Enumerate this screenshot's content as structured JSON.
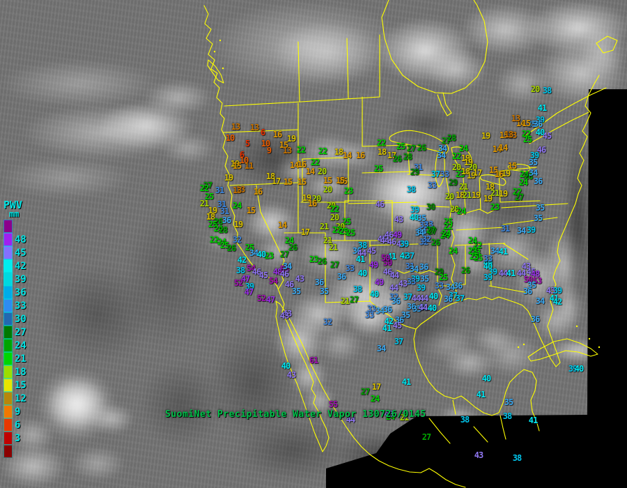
{
  "caption": {
    "text": "SuomiNet Precipitable Water Vapor 130726/0145",
    "color": "#00C24A"
  },
  "map": {
    "border_color": "#FFFF00",
    "background": "#747474",
    "scan_edge_color": "#000000"
  },
  "legend": {
    "title": "PWV",
    "unit": "mm",
    "text_color": "#00E2E2",
    "blocks": [
      {
        "color": "#8B008B",
        "label": ""
      },
      {
        "color": "#A020F0",
        "label": "48"
      },
      {
        "color": "#8470FF",
        "label": "45"
      },
      {
        "color": "#00EEEE",
        "label": "42"
      },
      {
        "color": "#00D8E0",
        "label": "39"
      },
      {
        "color": "#00ACE8",
        "label": "36"
      },
      {
        "color": "#2E8CF0",
        "label": "33"
      },
      {
        "color": "#2268B0",
        "label": "30"
      },
      {
        "color": "#007800",
        "label": "27"
      },
      {
        "color": "#00A400",
        "label": "24"
      },
      {
        "color": "#00D400",
        "label": "21"
      },
      {
        "color": "#9CDC00",
        "label": "18"
      },
      {
        "color": "#E8E400",
        "label": "15"
      },
      {
        "color": "#B8860B",
        "label": "12"
      },
      {
        "color": "#F07800",
        "label": "9"
      },
      {
        "color": "#E83800",
        "label": "6"
      },
      {
        "color": "#C00000",
        "label": "3"
      },
      {
        "color": "#8B0000",
        "label": ""
      }
    ]
  },
  "scale_colors": [
    [
      50,
      "#A010B0"
    ],
    [
      47,
      "#9B30E8"
    ],
    [
      43,
      "#8F76F0"
    ],
    [
      40,
      "#00E6F2"
    ],
    [
      37,
      "#00C6EC"
    ],
    [
      34,
      "#3BA8F0"
    ],
    [
      31,
      "#3E86DC"
    ],
    [
      29,
      "#008800"
    ],
    [
      26,
      "#00A400"
    ],
    [
      22,
      "#00D400"
    ],
    [
      20,
      "#A8D400"
    ],
    [
      17,
      "#D8C000"
    ],
    [
      14,
      "#E09800"
    ],
    [
      11,
      "#C87400"
    ],
    [
      8,
      "#E85C00"
    ],
    [
      5,
      "#E83000"
    ],
    [
      0,
      "#D01010"
    ]
  ],
  "stations": [
    [
      13,
      338,
      182
    ],
    [
      13,
      365,
      183
    ],
    [
      6,
      377,
      190
    ],
    [
      16,
      398,
      193
    ],
    [
      10,
      330,
      198
    ],
    [
      5,
      355,
      206
    ],
    [
      10,
      381,
      206
    ],
    [
      9,
      386,
      216
    ],
    [
      19,
      418,
      199
    ],
    [
      15,
      407,
      208
    ],
    [
      13,
      412,
      216
    ],
    [
      6,
      347,
      222
    ],
    [
      10,
      350,
      230
    ],
    [
      19,
      337,
      235
    ],
    [
      15,
      340,
      238
    ],
    [
      11,
      357,
      238
    ],
    [
      22,
      432,
      215
    ],
    [
      22,
      463,
      217
    ],
    [
      18,
      486,
      218
    ],
    [
      14,
      498,
      223
    ],
    [
      16,
      517,
      223
    ],
    [
      14,
      422,
      237
    ],
    [
      16,
      433,
      236
    ],
    [
      22,
      452,
      233
    ],
    [
      14,
      445,
      246
    ],
    [
      20,
      462,
      246
    ],
    [
      18,
      388,
      253
    ],
    [
      17,
      396,
      260
    ],
    [
      15,
      413,
      261
    ],
    [
      15,
      433,
      261
    ],
    [
      15,
      492,
      260
    ],
    [
      19,
      328,
      255
    ],
    [
      13,
      345,
      272
    ],
    [
      16,
      370,
      275
    ],
    [
      20,
      470,
      272
    ],
    [
      23,
      500,
      274
    ],
    [
      19,
      440,
      284
    ],
    [
      20,
      454,
      285
    ],
    [
      16,
      448,
      292
    ],
    [
      27,
      298,
      266
    ],
    [
      22,
      293,
      270
    ],
    [
      31,
      315,
      273
    ],
    [
      13,
      340,
      273
    ],
    [
      25,
      300,
      282
    ],
    [
      21,
      293,
      292
    ],
    [
      31,
      318,
      293
    ],
    [
      24,
      340,
      295
    ],
    [
      19,
      305,
      302
    ],
    [
      15,
      360,
      302
    ],
    [
      31,
      322,
      303
    ],
    [
      18,
      302,
      311
    ],
    [
      26,
      313,
      318
    ],
    [
      36,
      325,
      316
    ],
    [
      25,
      305,
      322
    ],
    [
      19,
      342,
      322
    ],
    [
      24,
      313,
      328
    ],
    [
      28,
      320,
      330
    ],
    [
      15,
      470,
      259
    ],
    [
      15,
      488,
      259
    ],
    [
      20,
      475,
      295
    ],
    [
      22,
      480,
      300
    ],
    [
      20,
      480,
      312
    ],
    [
      25,
      497,
      318
    ],
    [
      21,
      465,
      325
    ],
    [
      14,
      405,
      323
    ],
    [
      17,
      438,
      333
    ],
    [
      24,
      415,
      345
    ],
    [
      26,
      420,
      355
    ],
    [
      23,
      386,
      367
    ],
    [
      32,
      340,
      344
    ],
    [
      22,
      307,
      344
    ],
    [
      24,
      318,
      347
    ],
    [
      25,
      322,
      352
    ],
    [
      26,
      332,
      356
    ],
    [
      25,
      358,
      355
    ],
    [
      34,
      364,
      363
    ],
    [
      40,
      375,
      365
    ],
    [
      42,
      347,
      373
    ],
    [
      38,
      345,
      388
    ],
    [
      54,
      360,
      385
    ],
    [
      46,
      368,
      390
    ],
    [
      45,
      378,
      395
    ],
    [
      48,
      398,
      390
    ],
    [
      53,
      408,
      386
    ],
    [
      47,
      352,
      400
    ],
    [
      52,
      342,
      406
    ],
    [
      39,
      358,
      411
    ],
    [
      47,
      357,
      419
    ],
    [
      54,
      392,
      403
    ],
    [
      52,
      375,
      428
    ],
    [
      47,
      388,
      430
    ],
    [
      43,
      412,
      450
    ],
    [
      27,
      408,
      365
    ],
    [
      34,
      412,
      382
    ],
    [
      46,
      408,
      393
    ],
    [
      43,
      430,
      400
    ],
    [
      46,
      415,
      408
    ],
    [
      35,
      425,
      418
    ],
    [
      32,
      470,
      462
    ],
    [
      20,
      488,
      325
    ],
    [
      22,
      483,
      330
    ],
    [
      25,
      493,
      332
    ],
    [
      25,
      503,
      334
    ],
    [
      21,
      470,
      345
    ],
    [
      21,
      478,
      355
    ],
    [
      23,
      450,
      372
    ],
    [
      26,
      462,
      375
    ],
    [
      27,
      480,
      380
    ],
    [
      36,
      458,
      405
    ],
    [
      35,
      465,
      418
    ],
    [
      33,
      502,
      385
    ],
    [
      40,
      520,
      392
    ],
    [
      36,
      490,
      397
    ],
    [
      38,
      520,
      352
    ],
    [
      36,
      512,
      360
    ],
    [
      44,
      519,
      363
    ],
    [
      45,
      533,
      360
    ],
    [
      41,
      517,
      372
    ],
    [
      49,
      536,
      380
    ],
    [
      50,
      556,
      377
    ],
    [
      46,
      556,
      390
    ],
    [
      44,
      566,
      395
    ],
    [
      49,
      544,
      405
    ],
    [
      45,
      548,
      343
    ],
    [
      46,
      558,
      337
    ],
    [
      49,
      570,
      337
    ],
    [
      44,
      552,
      345
    ],
    [
      46,
      562,
      347
    ],
    [
      43,
      575,
      350
    ],
    [
      44,
      565,
      413
    ],
    [
      43,
      578,
      407
    ],
    [
      21,
      495,
      432
    ],
    [
      27,
      508,
      430
    ],
    [
      46,
      545,
      293
    ],
    [
      39,
      595,
      301
    ],
    [
      30,
      618,
      297
    ],
    [
      43,
      572,
      315
    ],
    [
      40,
      594,
      312
    ],
    [
      35,
      605,
      313
    ],
    [
      33,
      615,
      322
    ],
    [
      34,
      605,
      332
    ],
    [
      27,
      620,
      332
    ],
    [
      24,
      638,
      338
    ],
    [
      32,
      608,
      347
    ],
    [
      26,
      625,
      348
    ],
    [
      39,
      580,
      350
    ],
    [
      41,
      562,
      368
    ],
    [
      42,
      580,
      367
    ],
    [
      50,
      553,
      370
    ],
    [
      37,
      588,
      367
    ],
    [
      31,
      588,
      382
    ],
    [
      36,
      608,
      383
    ],
    [
      34,
      594,
      386
    ],
    [
      29,
      630,
      390
    ],
    [
      25,
      636,
      398
    ],
    [
      39,
      596,
      400
    ],
    [
      35,
      609,
      400
    ],
    [
      24,
      650,
      360
    ],
    [
      22,
      685,
      352
    ],
    [
      23,
      683,
      362
    ],
    [
      25,
      686,
      370
    ],
    [
      24,
      678,
      345
    ],
    [
      26,
      668,
      388
    ],
    [
      40,
      700,
      377
    ],
    [
      33,
      630,
      410
    ],
    [
      38,
      513,
      415
    ],
    [
      40,
      537,
      422
    ],
    [
      39,
      604,
      413
    ],
    [
      33,
      590,
      404
    ],
    [
      37,
      585,
      426
    ],
    [
      44,
      597,
      428
    ],
    [
      44,
      608,
      428
    ],
    [
      40,
      622,
      425
    ],
    [
      32,
      565,
      426
    ],
    [
      36,
      568,
      432
    ],
    [
      33,
      533,
      443
    ],
    [
      34,
      545,
      446
    ],
    [
      36,
      556,
      444
    ],
    [
      36,
      590,
      440
    ],
    [
      35,
      582,
      452
    ],
    [
      35,
      598,
      443
    ],
    [
      31,
      608,
      441
    ],
    [
      42,
      558,
      461
    ],
    [
      36,
      573,
      459
    ],
    [
      41,
      555,
      471
    ],
    [
      45,
      570,
      467
    ],
    [
      37,
      572,
      490
    ],
    [
      34,
      547,
      500
    ],
    [
      41,
      583,
      548
    ],
    [
      27,
      524,
      562
    ],
    [
      17,
      540,
      555
    ],
    [
      24,
      538,
      572
    ],
    [
      22,
      547,
      205
    ],
    [
      18,
      548,
      218
    ],
    [
      25,
      575,
      210
    ],
    [
      27,
      590,
      213
    ],
    [
      26,
      605,
      212
    ],
    [
      17,
      562,
      223
    ],
    [
      26,
      570,
      228
    ],
    [
      28,
      585,
      225
    ],
    [
      25,
      543,
      242
    ],
    [
      31,
      600,
      240
    ],
    [
      29,
      595,
      247
    ],
    [
      34,
      635,
      213
    ],
    [
      34,
      633,
      223
    ],
    [
      27,
      640,
      202
    ],
    [
      28,
      648,
      198
    ],
    [
      24,
      665,
      213
    ],
    [
      22,
      655,
      224
    ],
    [
      19,
      668,
      227
    ],
    [
      37,
      625,
      250
    ],
    [
      33,
      638,
      250
    ],
    [
      33,
      620,
      266
    ],
    [
      38,
      590,
      272
    ],
    [
      20,
      655,
      240
    ],
    [
      23,
      660,
      250
    ],
    [
      29,
      650,
      262
    ],
    [
      21,
      665,
      268
    ],
    [
      20,
      645,
      282
    ],
    [
      18,
      660,
      280
    ],
    [
      21,
      670,
      280
    ],
    [
      19,
      683,
      280
    ],
    [
      20,
      652,
      300
    ],
    [
      24,
      662,
      303
    ],
    [
      23,
      710,
      297
    ],
    [
      19,
      672,
      233
    ],
    [
      20,
      678,
      240
    ],
    [
      18,
      668,
      246
    ],
    [
      19,
      676,
      252
    ],
    [
      17,
      685,
      248
    ],
    [
      19,
      697,
      195
    ],
    [
      15,
      723,
      194
    ],
    [
      13,
      735,
      194
    ],
    [
      15,
      708,
      244
    ],
    [
      16,
      716,
      250
    ],
    [
      18,
      703,
      268
    ],
    [
      21,
      710,
      277
    ],
    [
      19,
      722,
      278
    ],
    [
      19,
      700,
      285
    ],
    [
      14,
      713,
      214
    ],
    [
      20,
      768,
      128
    ],
    [
      38,
      785,
      130
    ],
    [
      41,
      778,
      155
    ],
    [
      39,
      775,
      172
    ],
    [
      35,
      763,
      178
    ],
    [
      36,
      772,
      178
    ],
    [
      14,
      747,
      177
    ],
    [
      15,
      755,
      177
    ],
    [
      13,
      740,
      170
    ],
    [
      40,
      775,
      190
    ],
    [
      45,
      785,
      195
    ],
    [
      22,
      755,
      192
    ],
    [
      25,
      757,
      200
    ],
    [
      13,
      730,
      193
    ],
    [
      14,
      722,
      212
    ],
    [
      46,
      777,
      215
    ],
    [
      39,
      767,
      223
    ],
    [
      35,
      765,
      233
    ],
    [
      15,
      735,
      238
    ],
    [
      19,
      726,
      249
    ],
    [
      24,
      752,
      250
    ],
    [
      26,
      758,
      253
    ],
    [
      24,
      751,
      262
    ],
    [
      34,
      765,
      248
    ],
    [
      36,
      772,
      260
    ],
    [
      22,
      742,
      275
    ],
    [
      27,
      745,
      283
    ],
    [
      35,
      775,
      298
    ],
    [
      35,
      772,
      313
    ],
    [
      33,
      608,
      323
    ],
    [
      27,
      618,
      330
    ],
    [
      34,
      602,
      334
    ],
    [
      25,
      643,
      318
    ],
    [
      22,
      643,
      325
    ],
    [
      24,
      640,
      335
    ],
    [
      32,
      612,
      343
    ],
    [
      23,
      678,
      360
    ],
    [
      25,
      680,
      368
    ],
    [
      33,
      700,
      371
    ],
    [
      31,
      725,
      328
    ],
    [
      39,
      762,
      330
    ],
    [
      34,
      710,
      360
    ],
    [
      41,
      722,
      361
    ],
    [
      40,
      700,
      382
    ],
    [
      43,
      755,
      382
    ],
    [
      39,
      707,
      390
    ],
    [
      44,
      722,
      392
    ],
    [
      41,
      733,
      392
    ],
    [
      44,
      748,
      392
    ],
    [
      45,
      762,
      390
    ],
    [
      48,
      768,
      393
    ],
    [
      50,
      758,
      401
    ],
    [
      53,
      771,
      403
    ],
    [
      35,
      763,
      409
    ],
    [
      36,
      757,
      418
    ],
    [
      43,
      790,
      417
    ],
    [
      39,
      800,
      417
    ],
    [
      41,
      795,
      428
    ],
    [
      34,
      775,
      432
    ],
    [
      42,
      800,
      433
    ],
    [
      36,
      768,
      458
    ],
    [
      34,
      748,
      331
    ],
    [
      44,
      607,
      441
    ],
    [
      40,
      620,
      442
    ],
    [
      34,
      646,
      412
    ],
    [
      36,
      657,
      410
    ],
    [
      37,
      650,
      424
    ],
    [
      36,
      643,
      429
    ],
    [
      37,
      660,
      428
    ],
    [
      39,
      700,
      398
    ],
    [
      40,
      698,
      543
    ],
    [
      41,
      690,
      566
    ],
    [
      35,
      730,
      577
    ],
    [
      38,
      728,
      597
    ],
    [
      38,
      667,
      602
    ],
    [
      41,
      765,
      603
    ],
    [
      39,
      822,
      529
    ],
    [
      40,
      831,
      529
    ],
    [
      27,
      612,
      627
    ],
    [
      43,
      687,
      653
    ],
    [
      38,
      742,
      657
    ],
    [
      43,
      418,
      538
    ],
    [
      40,
      410,
      525
    ],
    [
      61,
      450,
      517
    ],
    [
      55,
      478,
      580
    ],
    [
      43,
      408,
      453
    ],
    [
      33,
      530,
      452
    ],
    [
      44,
      503,
      602
    ],
    [
      24,
      560,
      598
    ],
    [
      21,
      580,
      599
    ],
    [
      43,
      558,
      594
    ]
  ]
}
